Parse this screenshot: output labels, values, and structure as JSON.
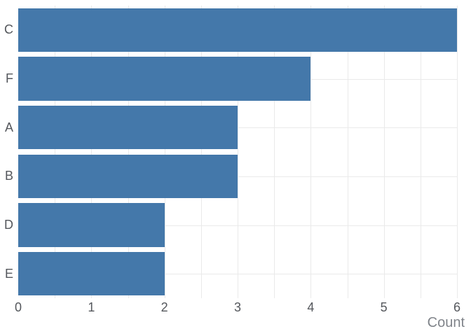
{
  "chart_data": {
    "type": "bar",
    "orientation": "horizontal",
    "title": "",
    "categories": [
      "C",
      "F",
      "A",
      "B",
      "D",
      "E"
    ],
    "values": [
      6,
      4,
      3,
      3,
      2,
      2
    ],
    "xlabel": "Count",
    "ylabel": "",
    "xlim": [
      0,
      6
    ],
    "xticks": [
      "0",
      "1",
      "2",
      "3",
      "4",
      "5",
      "6"
    ],
    "grid": true,
    "grid_minor_step": 0.5,
    "legend": false,
    "colors": {
      "bar": "#4478AA",
      "grid": "#EAEAEA",
      "tick_label": "#54575C",
      "axis_title": "#80848A",
      "background": "#FFFFFF"
    }
  }
}
